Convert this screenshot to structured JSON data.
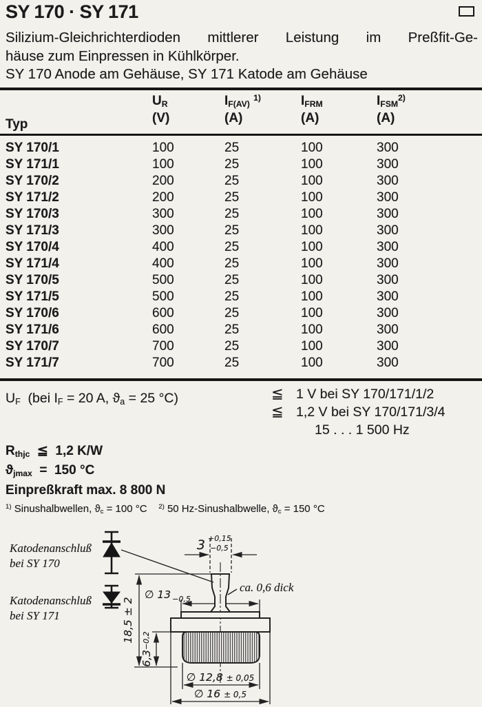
{
  "header": {
    "title": "SY 170 · SY 171",
    "corner_marker": "rectangle-outline",
    "description_lines": [
      "Silizium-Gleichrichterdioden mittlerer Leistung im Preßfit-Ge-",
      "häuse zum Einpressen in Kühlkörper.",
      "SY 170 Anode am Gehäuse, SY 171 Katode am Gehäuse"
    ]
  },
  "table": {
    "headers": [
      {
        "base": "Typ",
        "sub": "",
        "sup": "",
        "unit": ""
      },
      {
        "base": "U",
        "sub": "R",
        "sup": "",
        "unit": "(V)"
      },
      {
        "base": "I",
        "sub": "F(AV)",
        "sup": "1)",
        "unit": "(A)"
      },
      {
        "base": "I",
        "sub": "FRM",
        "sup": "",
        "unit": "(A)"
      },
      {
        "base": "I",
        "sub": "FSM",
        "sup": "2)",
        "unit": "(A)"
      }
    ],
    "rows": [
      [
        "SY 170/1",
        "100",
        "25",
        "100",
        "300"
      ],
      [
        "SY 171/1",
        "100",
        "25",
        "100",
        "300"
      ],
      [
        "SY 170/2",
        "200",
        "25",
        "100",
        "300"
      ],
      [
        "SY 171/2",
        "200",
        "25",
        "100",
        "300"
      ],
      [
        "SY 170/3",
        "300",
        "25",
        "100",
        "300"
      ],
      [
        "SY 171/3",
        "300",
        "25",
        "100",
        "300"
      ],
      [
        "SY 170/4",
        "400",
        "25",
        "100",
        "300"
      ],
      [
        "SY 171/4",
        "400",
        "25",
        "100",
        "300"
      ],
      [
        "SY 170/5",
        "500",
        "25",
        "100",
        "300"
      ],
      [
        "SY 171/5",
        "500",
        "25",
        "100",
        "300"
      ],
      [
        "SY 170/6",
        "600",
        "25",
        "100",
        "300"
      ],
      [
        "SY 171/6",
        "600",
        "25",
        "100",
        "300"
      ],
      [
        "SY 170/7",
        "700",
        "25",
        "100",
        "300"
      ],
      [
        "SY 171/7",
        "700",
        "25",
        "100",
        "300"
      ]
    ]
  },
  "uf": {
    "label_segments": [
      {
        "t": "U"
      },
      {
        "sub": "F"
      },
      {
        "t": "  (bei I"
      },
      {
        "sub": "F"
      },
      {
        "t": " = 20 A, ϑ"
      },
      {
        "sub": "a"
      },
      {
        "t": " = 25 °C)"
      }
    ],
    "conditions": [
      {
        "lim": "≦",
        "text": "1 V bei SY 170/171/1/2"
      },
      {
        "lim": "≦",
        "text": "1,2 V bei SY 170/171/3/4"
      },
      {
        "lim": "",
        "text": "15 . . . 1 500 Hz"
      }
    ]
  },
  "characteristics": {
    "rthjc": [
      {
        "t": "R"
      },
      {
        "sub": "thjc"
      },
      {
        "t": "  ≦  1,2 K/W"
      }
    ],
    "tjmax": [
      {
        "t": "ϑ"
      },
      {
        "sub": "jmax"
      },
      {
        "t": "  =  150 °C"
      }
    ],
    "press_force": "Einpreßkraft max. 8 800 N",
    "footnote": [
      {
        "sup": "1)"
      },
      {
        "t": " Sinushalbwellen, ϑ"
      },
      {
        "sub": "c"
      },
      {
        "t": " = 100 °C    "
      },
      {
        "sup": "2)"
      },
      {
        "t": " 50 Hz-Sinushalbwelle, ϑ"
      },
      {
        "sub": "c"
      },
      {
        "t": " = 150 °C"
      }
    ]
  },
  "drawing": {
    "cathode_note_sy170": {
      "line1": "Katodenanschluß",
      "line2": "bei SY 170"
    },
    "cathode_note_sy171": {
      "line1": "Katodenanschluß",
      "line2": "bei SY 171"
    },
    "pin_width": {
      "value": "3",
      "tol_plus": "+0,15",
      "tol_minus": "−0,5"
    },
    "pin_thickness_note": "ca. 0,6 dick",
    "top_plate_diameter": {
      "value": "∅ 13",
      "tol": "−0,5"
    },
    "overall_height": "18,5 ± 2",
    "body_height": {
      "value": "6,3",
      "tol": "−0,2"
    },
    "knurl_diameter": {
      "value": "∅ 12,8 ",
      "tol": "± 0,05"
    },
    "flange_diameter": {
      "value": "∅ 16 ",
      "tol": "± 0,5"
    }
  }
}
